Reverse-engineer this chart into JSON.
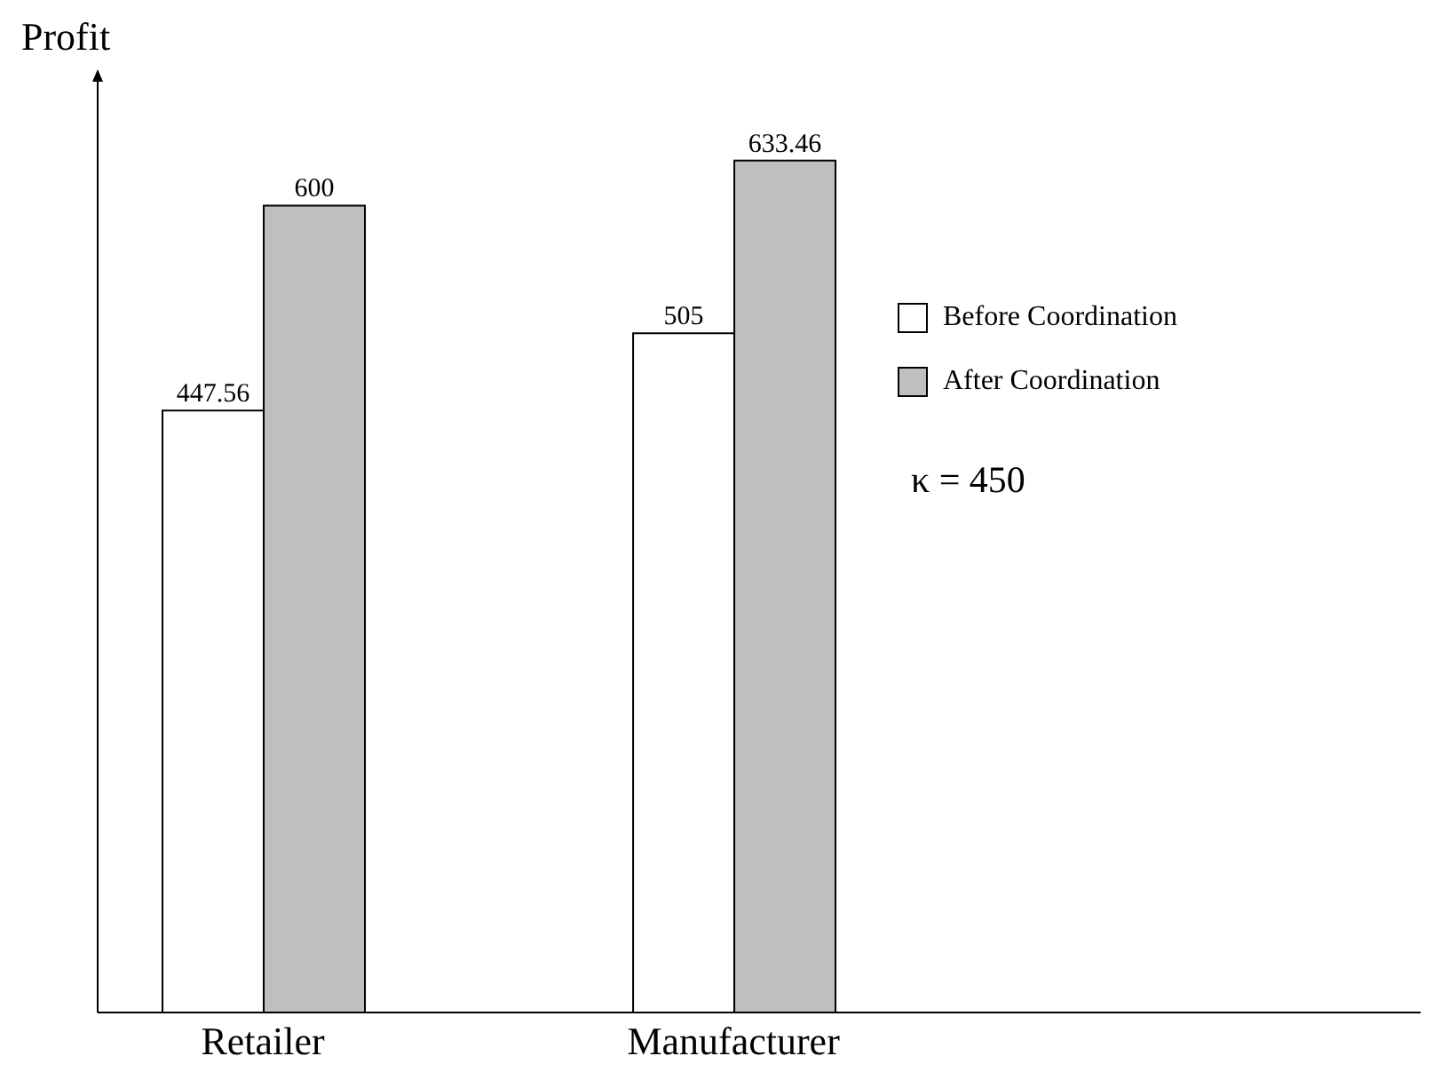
{
  "chart_data": {
    "type": "bar",
    "ylabel": "Profit",
    "categories": [
      "Retailer",
      "Manufacturer"
    ],
    "series": [
      {
        "name": "Before Coordination",
        "color": "#ffffff",
        "values": [
          447.56,
          505
        ]
      },
      {
        "name": "After Coordination",
        "color": "#bfbfbf",
        "values": [
          600,
          633.46
        ]
      }
    ],
    "data_labels": true,
    "legend": "right",
    "grid": false,
    "annotations": [
      "κ = 450"
    ]
  }
}
